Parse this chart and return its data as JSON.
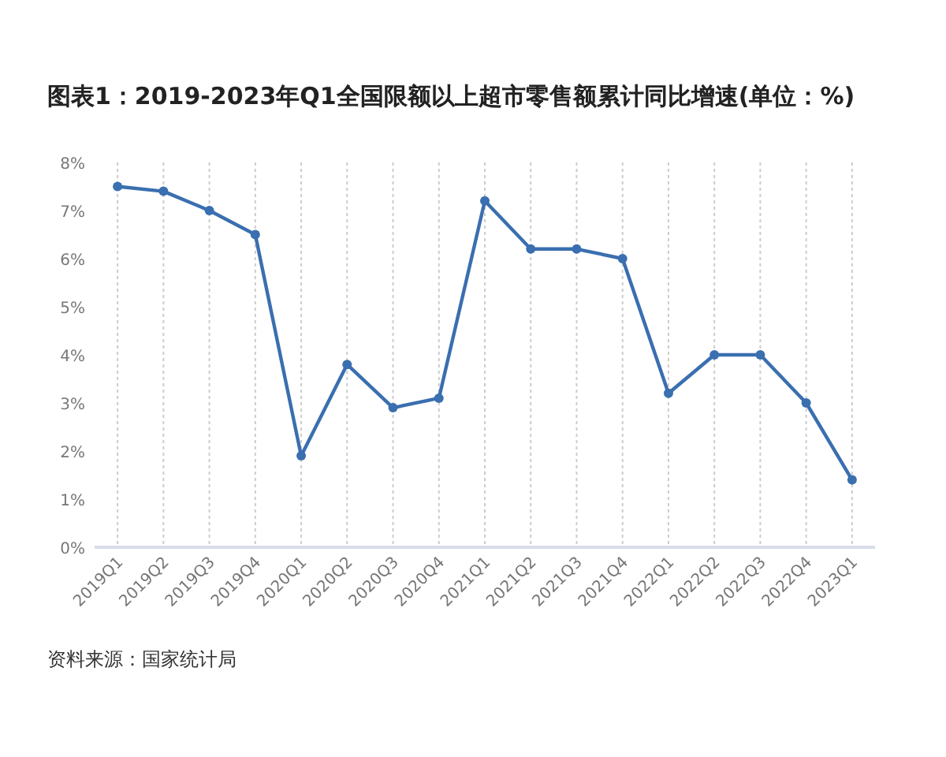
{
  "chart_data": {
    "type": "line",
    "title": "图表1：2019-2023年Q1全国限额以上超市零售额累计同比增速(单位：%)",
    "categories": [
      "2019Q1",
      "2019Q2",
      "2019Q3",
      "2019Q4",
      "2020Q1",
      "2020Q2",
      "2020Q3",
      "2020Q4",
      "2021Q1",
      "2021Q2",
      "2021Q3",
      "2021Q4",
      "2022Q1",
      "2022Q2",
      "2022Q3",
      "2022Q4",
      "2023Q1"
    ],
    "series": [
      {
        "color": "#3a6fb0",
        "values": [
          7.5,
          7.4,
          7.0,
          6.5,
          1.9,
          3.8,
          2.9,
          3.1,
          7.2,
          6.2,
          6.2,
          6.0,
          3.2,
          4.0,
          4.0,
          3.0,
          1.4
        ]
      }
    ],
    "ylim": [
      0,
      8
    ],
    "yticks": [
      {
        "value": 0,
        "label": "0%"
      },
      {
        "value": 1,
        "label": "1%"
      },
      {
        "value": 2,
        "label": "2%"
      },
      {
        "value": 3,
        "label": "3%"
      },
      {
        "value": 4,
        "label": "4%"
      },
      {
        "value": 5,
        "label": "5%"
      },
      {
        "value": 6,
        "label": "6%"
      },
      {
        "value": 7,
        "label": "7%"
      },
      {
        "value": 8,
        "label": "8%"
      }
    ],
    "grid": "x",
    "marker": "circle",
    "line_style": "solid",
    "annotations": [
      "资料来源：国家统计局"
    ]
  }
}
